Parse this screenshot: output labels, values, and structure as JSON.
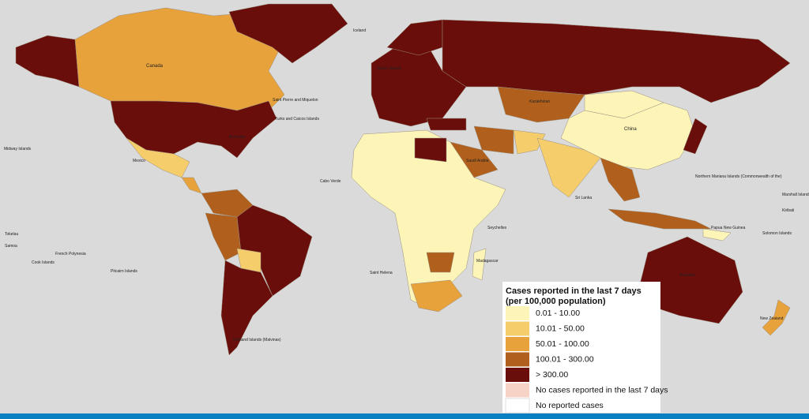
{
  "legend": {
    "title": [
      "Cases reported in the last 7 days",
      "(per 100,000 population)"
    ],
    "items": [
      {
        "label": "0.01 - 10.00",
        "color": "#fdf5b8"
      },
      {
        "label": "10.01 - 50.00",
        "color": "#f5cd6b"
      },
      {
        "label": "50.01 - 100.00",
        "color": "#e7a23b"
      },
      {
        "label": "100.01 - 300.00",
        "color": "#b0601c"
      },
      {
        "label": "> 300.00",
        "color": "#6a0e0b"
      },
      {
        "label": "No cases reported in the last 7 days",
        "color": "#f7d2c6"
      },
      {
        "label": "No reported cases",
        "color": "#ffffff"
      }
    ]
  },
  "places": [
    "Canada",
    "China",
    "Mexico",
    "Kazakhstan",
    "Saudi Arabia",
    "Sri Lanka",
    "New Zealand",
    "Saint Pierre and Miquelon",
    "Cabo Verde",
    "Saint Helena",
    "Seychelles",
    "Madagascar",
    "French Polynesia",
    "Pitcairn Islands",
    "Falkland Islands (Malvinas)",
    "Midway Islands",
    "Tokelau",
    "Samoa",
    "Cook Islands",
    "Northern Mariana Islands (Commonwealth of the)",
    "Marshall Islands",
    "Kiribati",
    "Solomon Islands",
    "Papua New Guinea",
    "Australia",
    "Iceland",
    "Faroe Islands",
    "Turks and Caicos Islands",
    "Bermuda"
  ]
}
